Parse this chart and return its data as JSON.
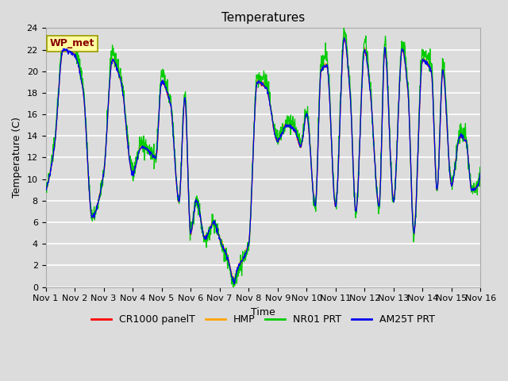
{
  "title": "Temperatures",
  "xlabel": "Time",
  "ylabel": "Temperature (C)",
  "ylim": [
    0,
    24
  ],
  "yticks": [
    0,
    2,
    4,
    6,
    8,
    10,
    12,
    14,
    16,
    18,
    20,
    22,
    24
  ],
  "xtick_labels": [
    "Nov 1",
    "Nov 2",
    "Nov 3",
    "Nov 4",
    "Nov 5",
    "Nov 6",
    "Nov 7",
    "Nov 8",
    "Nov 9",
    "Nov 10",
    "Nov 11",
    "Nov 12",
    "Nov 13",
    "Nov 14",
    "Nov 15",
    "Nov 16"
  ],
  "legend_labels": [
    "CR1000 panelT",
    "HMP",
    "NR01 PRT",
    "AM25T PRT"
  ],
  "legend_colors": [
    "#ff0000",
    "#ffa500",
    "#00cc00",
    "#0000ee"
  ],
  "background_color": "#dcdcdc",
  "grid_color": "#ffffff",
  "annotation_text": "WP_met",
  "annotation_box_color": "#ffffa0",
  "annotation_text_color": "#880000",
  "title_fontsize": 11,
  "axis_label_fontsize": 9,
  "tick_fontsize": 8,
  "legend_fontsize": 9,
  "figwidth": 6.4,
  "figheight": 4.8,
  "dpi": 100,
  "keypoints": {
    "t": [
      0.0,
      0.3,
      0.6,
      1.0,
      1.3,
      1.6,
      2.0,
      2.3,
      2.6,
      3.0,
      3.3,
      3.6,
      3.8,
      4.0,
      4.3,
      4.6,
      4.8,
      5.0,
      5.2,
      5.5,
      5.8,
      6.0,
      6.3,
      6.5,
      6.6,
      7.0,
      7.3,
      7.6,
      8.0,
      8.3,
      8.6,
      8.8,
      9.0,
      9.3,
      9.5,
      9.7,
      10.0,
      10.3,
      10.5,
      10.7,
      11.0,
      11.2,
      11.5,
      11.7,
      12.0,
      12.3,
      12.5,
      12.7,
      13.0,
      13.3,
      13.5,
      13.7,
      14.0,
      14.3,
      14.5,
      14.7,
      15.0
    ],
    "base": [
      9.0,
      13.0,
      22.0,
      21.5,
      18.0,
      6.5,
      10.5,
      21.0,
      19.0,
      10.5,
      13.0,
      12.5,
      12.0,
      19.0,
      17.0,
      8.0,
      17.5,
      5.0,
      8.0,
      4.5,
      6.0,
      4.5,
      2.5,
      0.5,
      1.5,
      4.0,
      19.0,
      18.5,
      13.5,
      15.0,
      14.5,
      13.0,
      16.0,
      7.5,
      20.0,
      20.5,
      7.5,
      23.0,
      18.0,
      7.0,
      22.0,
      18.0,
      7.5,
      22.0,
      8.0,
      22.0,
      18.0,
      5.0,
      21.0,
      20.0,
      9.0,
      20.0,
      9.5,
      14.0,
      13.5,
      9.0,
      10.5
    ]
  }
}
